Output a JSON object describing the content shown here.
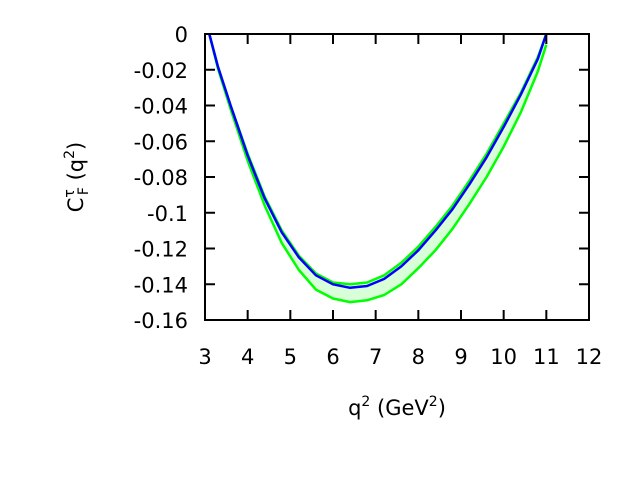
{
  "chart_data": {
    "type": "line",
    "title": "",
    "xlabel": {
      "base": "q",
      "sup1": "2",
      "mid": " (GeV",
      "sup2": "2",
      "end": ")"
    },
    "ylabel": {
      "base": "C",
      "sup": "τ",
      "sub": "F",
      "mid": " (q",
      "sup2": "2",
      "end": ")"
    },
    "xlim": [
      3,
      12
    ],
    "ylim": [
      -0.16,
      0
    ],
    "xticks": [
      3,
      4,
      5,
      6,
      7,
      8,
      9,
      10,
      11,
      12
    ],
    "xtick_labels": [
      "3",
      "4",
      "5",
      "6",
      "7",
      "8",
      "9",
      "10",
      "11",
      "12"
    ],
    "yticks": [
      0,
      -0.02,
      -0.04,
      -0.06,
      -0.08,
      -0.1,
      -0.12,
      -0.14,
      -0.16
    ],
    "ytick_labels": [
      "0",
      "-0.02",
      "-0.04",
      "-0.06",
      "-0.08",
      "-0.1",
      "-0.12",
      "-0.14",
      "-0.16"
    ],
    "grid": false,
    "colors": {
      "central": "#0000ff",
      "band_edge": "#00ff00",
      "band_fill": "#d9ffd9"
    },
    "series": [
      {
        "x": [
          3.1,
          3.3,
          3.6,
          4.0,
          4.4,
          4.8,
          5.2,
          5.6,
          6.0,
          6.4,
          6.8,
          7.2,
          7.6,
          8.0,
          8.4,
          8.8,
          9.2,
          9.6,
          10.0,
          10.4,
          10.8,
          11.0
        ],
        "values": [
          0,
          -0.018,
          -0.04,
          -0.068,
          -0.092,
          -0.111,
          -0.125,
          -0.135,
          -0.14,
          -0.142,
          -0.141,
          -0.137,
          -0.13,
          -0.121,
          -0.11,
          -0.098,
          -0.084,
          -0.069,
          -0.052,
          -0.034,
          -0.014,
          0
        ]
      },
      {
        "x": [
          3.1,
          3.3,
          3.6,
          4.0,
          4.4,
          4.8,
          5.2,
          5.6,
          6.0,
          6.4,
          6.8,
          7.2,
          7.6,
          8.0,
          8.4,
          8.8,
          9.2,
          9.6,
          10.0,
          10.4,
          10.8,
          11.0
        ],
        "values": [
          0,
          -0.019,
          -0.042,
          -0.071,
          -0.096,
          -0.117,
          -0.132,
          -0.143,
          -0.148,
          -0.15,
          -0.149,
          -0.146,
          -0.14,
          -0.131,
          -0.121,
          -0.109,
          -0.095,
          -0.08,
          -0.063,
          -0.044,
          -0.021,
          -0.006
        ]
      },
      {
        "x": [
          3.1,
          3.3,
          3.6,
          4.0,
          4.4,
          4.8,
          5.2,
          5.6,
          6.0,
          6.4,
          6.8,
          7.2,
          7.6,
          8.0,
          8.4,
          8.8,
          9.2,
          9.6,
          10.0,
          10.4,
          10.8,
          11.0
        ],
        "values": [
          0,
          -0.018,
          -0.04,
          -0.067,
          -0.091,
          -0.11,
          -0.124,
          -0.134,
          -0.139,
          -0.14,
          -0.139,
          -0.135,
          -0.128,
          -0.119,
          -0.108,
          -0.096,
          -0.082,
          -0.067,
          -0.05,
          -0.033,
          -0.013,
          0
        ]
      }
    ]
  }
}
